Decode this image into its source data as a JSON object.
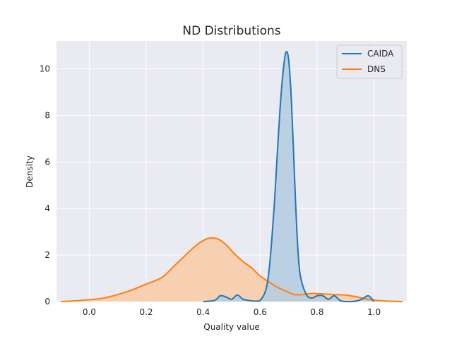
{
  "chart_data": {
    "type": "area",
    "title": "ND Distributions",
    "xlabel": "Quality value",
    "ylabel": "Density",
    "xlim": [
      -0.115,
      1.115
    ],
    "ylim": [
      0,
      11.2
    ],
    "xticks": [
      "0.0",
      "0.2",
      "0.4",
      "0.6",
      "0.8",
      "1.0"
    ],
    "xtick_values": [
      0.0,
      0.2,
      0.4,
      0.6,
      0.8,
      1.0
    ],
    "yticks": [
      "0",
      "2",
      "4",
      "6",
      "8",
      "10"
    ],
    "ytick_values": [
      0,
      2,
      4,
      6,
      8,
      10
    ],
    "grid": true,
    "legend_position": "top-right",
    "series": [
      {
        "name": "CAIDA",
        "color": "#1f77b4",
        "fill": "#b3cde0",
        "x": [
          0.4,
          0.44,
          0.46,
          0.48,
          0.5,
          0.52,
          0.54,
          0.56,
          0.58,
          0.6,
          0.62,
          0.63,
          0.64,
          0.65,
          0.66,
          0.67,
          0.68,
          0.69,
          0.7,
          0.71,
          0.72,
          0.73,
          0.74,
          0.76,
          0.78,
          0.8,
          0.82,
          0.84,
          0.86,
          0.88,
          0.9,
          0.92,
          0.94,
          0.96,
          0.98,
          1.0
        ],
        "y": [
          0.0,
          0.05,
          0.25,
          0.2,
          0.1,
          0.28,
          0.1,
          0.05,
          0.02,
          0.05,
          0.5,
          1.2,
          2.5,
          4.2,
          6.3,
          8.3,
          9.8,
          10.7,
          10.4,
          8.6,
          5.6,
          2.8,
          1.2,
          0.35,
          0.15,
          0.25,
          0.25,
          0.1,
          0.25,
          0.05,
          0.0,
          0.0,
          0.03,
          0.12,
          0.25,
          0.0
        ]
      },
      {
        "name": "DNS",
        "color": "#ff7f0e",
        "fill": "#f8cba5",
        "x": [
          -0.1,
          -0.05,
          0.0,
          0.05,
          0.1,
          0.15,
          0.2,
          0.25,
          0.28,
          0.3,
          0.33,
          0.36,
          0.39,
          0.42,
          0.45,
          0.48,
          0.51,
          0.54,
          0.57,
          0.6,
          0.63,
          0.66,
          0.69,
          0.72,
          0.75,
          0.78,
          0.82,
          0.86,
          0.9,
          0.94,
          0.97,
          1.0,
          1.05,
          1.1
        ],
        "y": [
          0.0,
          0.03,
          0.08,
          0.15,
          0.3,
          0.5,
          0.75,
          1.0,
          1.3,
          1.55,
          1.9,
          2.25,
          2.55,
          2.72,
          2.7,
          2.45,
          2.05,
          1.72,
          1.45,
          1.1,
          0.85,
          0.62,
          0.45,
          0.3,
          0.3,
          0.35,
          0.33,
          0.3,
          0.28,
          0.2,
          0.12,
          0.06,
          0.02,
          0.0
        ]
      }
    ]
  }
}
